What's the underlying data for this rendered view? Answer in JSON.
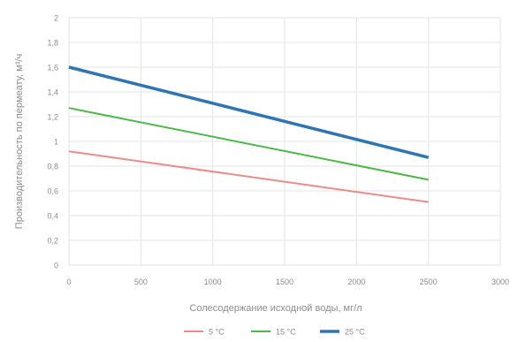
{
  "chart_data": {
    "type": "line",
    "title": "",
    "xlabel": "Солесодержание исходной воды, мг/л",
    "ylabel": "Производительность по пермеату, м³/ч",
    "xlim": [
      0,
      3000
    ],
    "ylim": [
      0,
      2
    ],
    "x_ticks": [
      "0",
      "500",
      "1000",
      "1500",
      "2000",
      "2500",
      "3000"
    ],
    "y_ticks": [
      "0",
      "0,2",
      "0,4",
      "0,6",
      "0,8",
      "1",
      "1,2",
      "1,4",
      "1,6",
      "1,8",
      "2"
    ],
    "grid": true,
    "legend_position": "bottom",
    "series": [
      {
        "name": "5 °C",
        "color": "#f08a8a",
        "x": [
          0,
          2500
        ],
        "y": [
          0.92,
          0.51
        ]
      },
      {
        "name": "15 °C",
        "color": "#4cb848",
        "x": [
          0,
          2500
        ],
        "y": [
          1.27,
          0.69
        ]
      },
      {
        "name": "25 °C",
        "color": "#2e75b6",
        "x": [
          0,
          2500
        ],
        "y": [
          1.6,
          0.87
        ]
      }
    ]
  }
}
